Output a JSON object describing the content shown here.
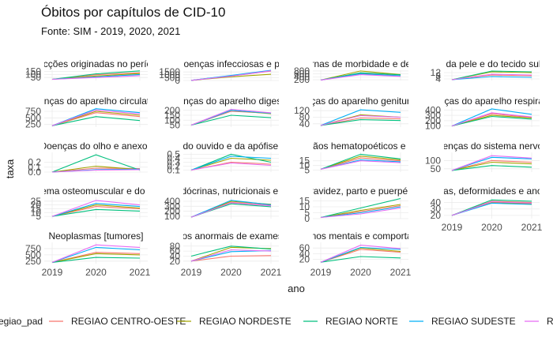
{
  "title": "Óbitos por capítulos de CID-10",
  "subtitle": "Fonte: SIM - 2019, 2020, 2021",
  "chart_data": {
    "type": "line",
    "xlabel": "ano",
    "ylabel": "taxa",
    "x": [
      2019,
      2020,
      2021
    ],
    "x_ticks": [
      "2019",
      "2020",
      "2021"
    ],
    "legend": {
      "title": "regiao_pad",
      "position": "bottom",
      "items": [
        {
          "name": "REGIAO CENTRO-OESTE",
          "color": "#F8766D"
        },
        {
          "name": "REGIAO NORDESTE",
          "color": "#A3A500"
        },
        {
          "name": "REGIAO NORTE",
          "color": "#00BF7D"
        },
        {
          "name": "REGIAO SUDESTE",
          "color": "#00B0F6"
        },
        {
          "name": "REGIAO SUL",
          "color": "#E76BF3"
        }
      ]
    },
    "panels": [
      {
        "strip": "Algumas afecções originadas no período perinatal",
        "ylim": [
          0,
          170
        ],
        "yticks": [
          "50",
          "100",
          "150"
        ],
        "series": [
          [
            20,
            95,
            130
          ],
          [
            20,
            75,
            115
          ],
          [
            20,
            110,
            160
          ],
          [
            20,
            60,
            100
          ],
          [
            20,
            50,
            80
          ]
        ]
      },
      {
        "strip": "Algumas doenças infecciosas e parasitárias",
        "ylim": [
          0,
          1800
        ],
        "yticks": [
          "0",
          "500",
          "1000",
          "1500"
        ],
        "series": [
          [
            30,
            800,
            1650
          ],
          [
            30,
            650,
            1100
          ],
          [
            30,
            850,
            1750
          ],
          [
            30,
            900,
            1800
          ],
          [
            30,
            780,
            1700
          ]
        ]
      },
      {
        "strip": "Causas externas de morbidade e de mortalidade",
        "ylim": [
          150,
          850
        ],
        "yticks": [
          "200",
          "400",
          "600",
          "800"
        ],
        "series": [
          [
            180,
            650,
            460
          ],
          [
            180,
            800,
            560
          ],
          [
            180,
            680,
            540
          ],
          [
            180,
            600,
            470
          ],
          [
            180,
            550,
            430
          ]
        ]
      },
      {
        "strip": "Doenças da pele e do tecido subcutâneo",
        "ylim": [
          2,
          15
        ],
        "yticks": [
          "4",
          "8",
          "12"
        ],
        "series": [
          [
            3,
            9,
            8
          ],
          [
            3,
            13,
            12
          ],
          [
            3,
            14,
            13
          ],
          [
            3,
            7,
            6
          ],
          [
            3,
            10,
            9
          ]
        ]
      },
      {
        "strip": "Doenças do aparelho circulatório",
        "ylim": [
          150,
          900
        ],
        "yticks": [
          "250",
          "500",
          "750"
        ],
        "series": [
          [
            200,
            700,
            550
          ],
          [
            200,
            750,
            600
          ],
          [
            200,
            550,
            400
          ],
          [
            200,
            850,
            700
          ],
          [
            200,
            800,
            650
          ]
        ]
      },
      {
        "strip": "Doenças do aparelho digestivo",
        "ylim": [
          30,
          230
        ],
        "yticks": [
          "50",
          "100",
          "150",
          "200"
        ],
        "series": [
          [
            50,
            190,
            170
          ],
          [
            50,
            200,
            165
          ],
          [
            50,
            150,
            125
          ],
          [
            50,
            200,
            170
          ],
          [
            50,
            210,
            175
          ]
        ]
      },
      {
        "strip": "Doenças do aparelho geniturinário",
        "ylim": [
          20,
          140
        ],
        "yticks": [
          "40",
          "80",
          "120"
        ],
        "series": [
          [
            30,
            75,
            70
          ],
          [
            30,
            95,
            80
          ],
          [
            30,
            65,
            60
          ],
          [
            30,
            125,
            110
          ],
          [
            30,
            90,
            80
          ]
        ]
      },
      {
        "strip": "Doenças do aparelho respiratório",
        "ylim": [
          80,
          450
        ],
        "yticks": [
          "100",
          "200",
          "300",
          "400"
        ],
        "series": [
          [
            100,
            330,
            260
          ],
          [
            100,
            300,
            250
          ],
          [
            100,
            280,
            230
          ],
          [
            100,
            420,
            320
          ],
          [
            100,
            350,
            270
          ]
        ]
      },
      {
        "strip": "Doenças do olho e anexos",
        "ylim": [
          0,
          0.4
        ],
        "yticks": [
          "0.0",
          "0.1",
          "0.2"
        ],
        "series": [
          [
            0,
            0.08,
            0.07
          ],
          [
            0,
            0.12,
            0.05
          ],
          [
            0,
            0.35,
            0.04
          ],
          [
            0,
            0.05,
            0.06
          ],
          [
            0,
            0.04,
            0.05
          ]
        ]
      },
      {
        "strip": "Doenças do ouvido e da apófise mastóide",
        "ylim": [
          0.05,
          0.55
        ],
        "yticks": [
          "0.1",
          "0.2",
          "0.3",
          "0.4",
          "0.5"
        ],
        "series": [
          [
            0.1,
            0.3,
            0.25
          ],
          [
            0.1,
            0.4,
            0.35
          ],
          [
            0.1,
            0.5,
            0.3
          ],
          [
            0.1,
            0.45,
            0.4
          ],
          [
            0.1,
            0.28,
            0.22
          ]
        ]
      },
      {
        "strip": "Doenças do sangue e dos órgãos hematopoéticos e alguns transtornos imunitários",
        "ylim": [
          3,
          24
        ],
        "yticks": [
          "5",
          "10",
          "15"
        ],
        "series": [
          [
            6,
            18,
            15
          ],
          [
            6,
            20,
            16
          ],
          [
            6,
            22,
            17
          ],
          [
            6,
            16,
            14
          ],
          [
            6,
            15,
            13
          ]
        ]
      },
      {
        "strip": "Doenças do sistema nervoso",
        "ylim": [
          30,
          150
        ],
        "yticks": [
          "50",
          "100"
        ],
        "series": [
          [
            40,
            100,
            90
          ],
          [
            40,
            90,
            80
          ],
          [
            40,
            70,
            60
          ],
          [
            40,
            120,
            110
          ],
          [
            40,
            130,
            115
          ]
        ]
      },
      {
        "strip": "Doenças do sistema osteomuscular e do tecido conjuntivo",
        "ylim": [
          2,
          30
        ],
        "yticks": [
          "5",
          "10",
          "15",
          "20",
          "25"
        ],
        "series": [
          [
            5,
            18,
            15
          ],
          [
            5,
            20,
            16
          ],
          [
            5,
            14,
            12
          ],
          [
            5,
            22,
            18
          ],
          [
            5,
            26,
            20
          ]
        ]
      },
      {
        "strip": "Doenças endócrinas, nutricionais e metabólicas",
        "ylim": [
          50,
          480
        ],
        "yticks": [
          "100",
          "200",
          "300",
          "400"
        ],
        "series": [
          [
            80,
            380,
            320
          ],
          [
            80,
            400,
            340
          ],
          [
            80,
            350,
            290
          ],
          [
            80,
            420,
            330
          ],
          [
            80,
            370,
            310
          ]
        ]
      },
      {
        "strip": "Gravidez, parto e puerpério",
        "ylim": [
          0,
          18
        ],
        "yticks": [
          "0",
          "5",
          "10",
          "15"
        ],
        "series": [
          [
            1,
            6,
            11
          ],
          [
            1,
            7,
            12
          ],
          [
            1,
            9,
            17
          ],
          [
            1,
            5,
            10
          ],
          [
            1,
            4,
            9
          ]
        ]
      },
      {
        "strip": "Malformações congênitas, deformidades e anomalias cromossômicas",
        "ylim": [
          15,
          48
        ],
        "yticks": [
          "20",
          "30",
          "40"
        ],
        "series": [
          [
            20,
            42,
            40
          ],
          [
            20,
            40,
            38
          ],
          [
            20,
            44,
            42
          ],
          [
            20,
            39,
            37
          ],
          [
            20,
            41,
            39
          ]
        ]
      },
      {
        "strip": "Neoplasmas [tumores]",
        "ylim": [
          150,
          1000
        ],
        "yticks": [
          "250",
          "500",
          "750"
        ],
        "series": [
          [
            200,
            600,
            550
          ],
          [
            200,
            550,
            500
          ],
          [
            200,
            400,
            370
          ],
          [
            200,
            800,
            700
          ],
          [
            200,
            900,
            800
          ]
        ]
      },
      {
        "strip": "Sintomas, sinais e achados anormais de exames clínicos e de laboratório",
        "ylim": [
          10,
          95
        ],
        "yticks": [
          "20",
          "40",
          "60",
          "80"
        ],
        "series": [
          [
            20,
            40,
            42
          ],
          [
            20,
            75,
            70
          ],
          [
            40,
            80,
            68
          ],
          [
            20,
            58,
            62
          ],
          [
            20,
            65,
            60
          ]
        ]
      },
      {
        "strip": "Transtornos mentais e comportamentais",
        "ylim": [
          5,
          80
        ],
        "yticks": [
          "20",
          "40",
          "60"
        ],
        "series": [
          [
            10,
            55,
            45
          ],
          [
            10,
            60,
            48
          ],
          [
            10,
            30,
            25
          ],
          [
            10,
            62,
            55
          ],
          [
            10,
            70,
            58
          ]
        ]
      }
    ]
  }
}
